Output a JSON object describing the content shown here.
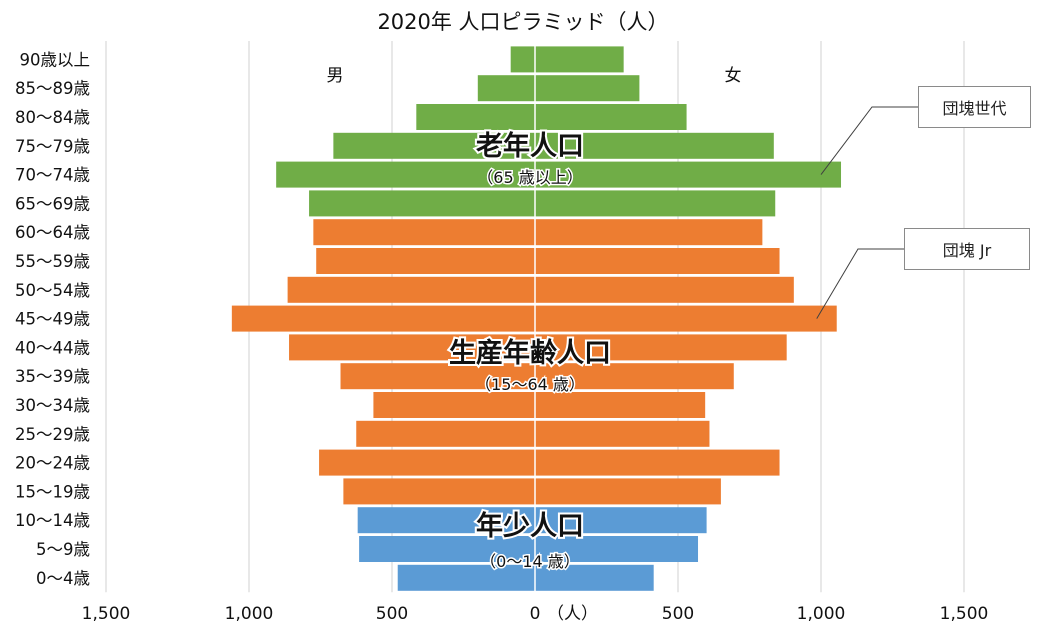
{
  "chart_data": {
    "type": "bar",
    "orientation": "horizontal-population-pyramid",
    "title": "2020年 人口ピラミッド（人）",
    "x_unit_label": "（人）",
    "xlim": [
      -1500,
      1500
    ],
    "x_ticks": [
      -1500,
      -1000,
      -500,
      0,
      500,
      1000,
      1500
    ],
    "x_tick_labels": [
      "1,500",
      "1,000",
      "500",
      "0",
      "500",
      "1,000",
      "1,500"
    ],
    "grid": true,
    "categories": [
      "90歳以上",
      "85〜89歳",
      "80〜84歳",
      "75〜79歳",
      "70〜74歳",
      "65〜69歳",
      "60〜64歳",
      "55〜59歳",
      "50〜54歳",
      "45〜49歳",
      "40〜44歳",
      "35〜39歳",
      "30〜34歳",
      "25〜29歳",
      "20〜24歳",
      "15〜19歳",
      "10〜14歳",
      "5〜9歳",
      "0〜4歳"
    ],
    "series": [
      {
        "name": "男",
        "values": [
          85,
          200,
          415,
          705,
          905,
          790,
          775,
          765,
          865,
          1060,
          860,
          680,
          565,
          625,
          755,
          670,
          620,
          615,
          480
        ]
      },
      {
        "name": "女",
        "values": [
          310,
          365,
          530,
          835,
          1070,
          840,
          795,
          855,
          905,
          1055,
          880,
          695,
          595,
          610,
          855,
          650,
          600,
          570,
          415
        ]
      }
    ],
    "group_colors": {
      "elderly": "#70ad47",
      "working": "#ed7d31",
      "young": "#5b9bd5"
    },
    "groups": [
      {
        "key": "elderly",
        "label": "老年人口",
        "sublabel": "（65 歳以上）",
        "rows": [
          0,
          5
        ]
      },
      {
        "key": "working",
        "label": "生産年齢人口",
        "sublabel": "（15〜64 歳）",
        "rows": [
          6,
          15
        ]
      },
      {
        "key": "young",
        "label": "年少人口",
        "sublabel": "（0〜14 歳）",
        "rows": [
          16,
          18
        ]
      }
    ],
    "side_labels": {
      "left": "男",
      "right": "女"
    },
    "annotations": [
      {
        "text": "団塊世代",
        "row": 4
      },
      {
        "text": "団塊 Jr",
        "row": 9
      }
    ]
  }
}
